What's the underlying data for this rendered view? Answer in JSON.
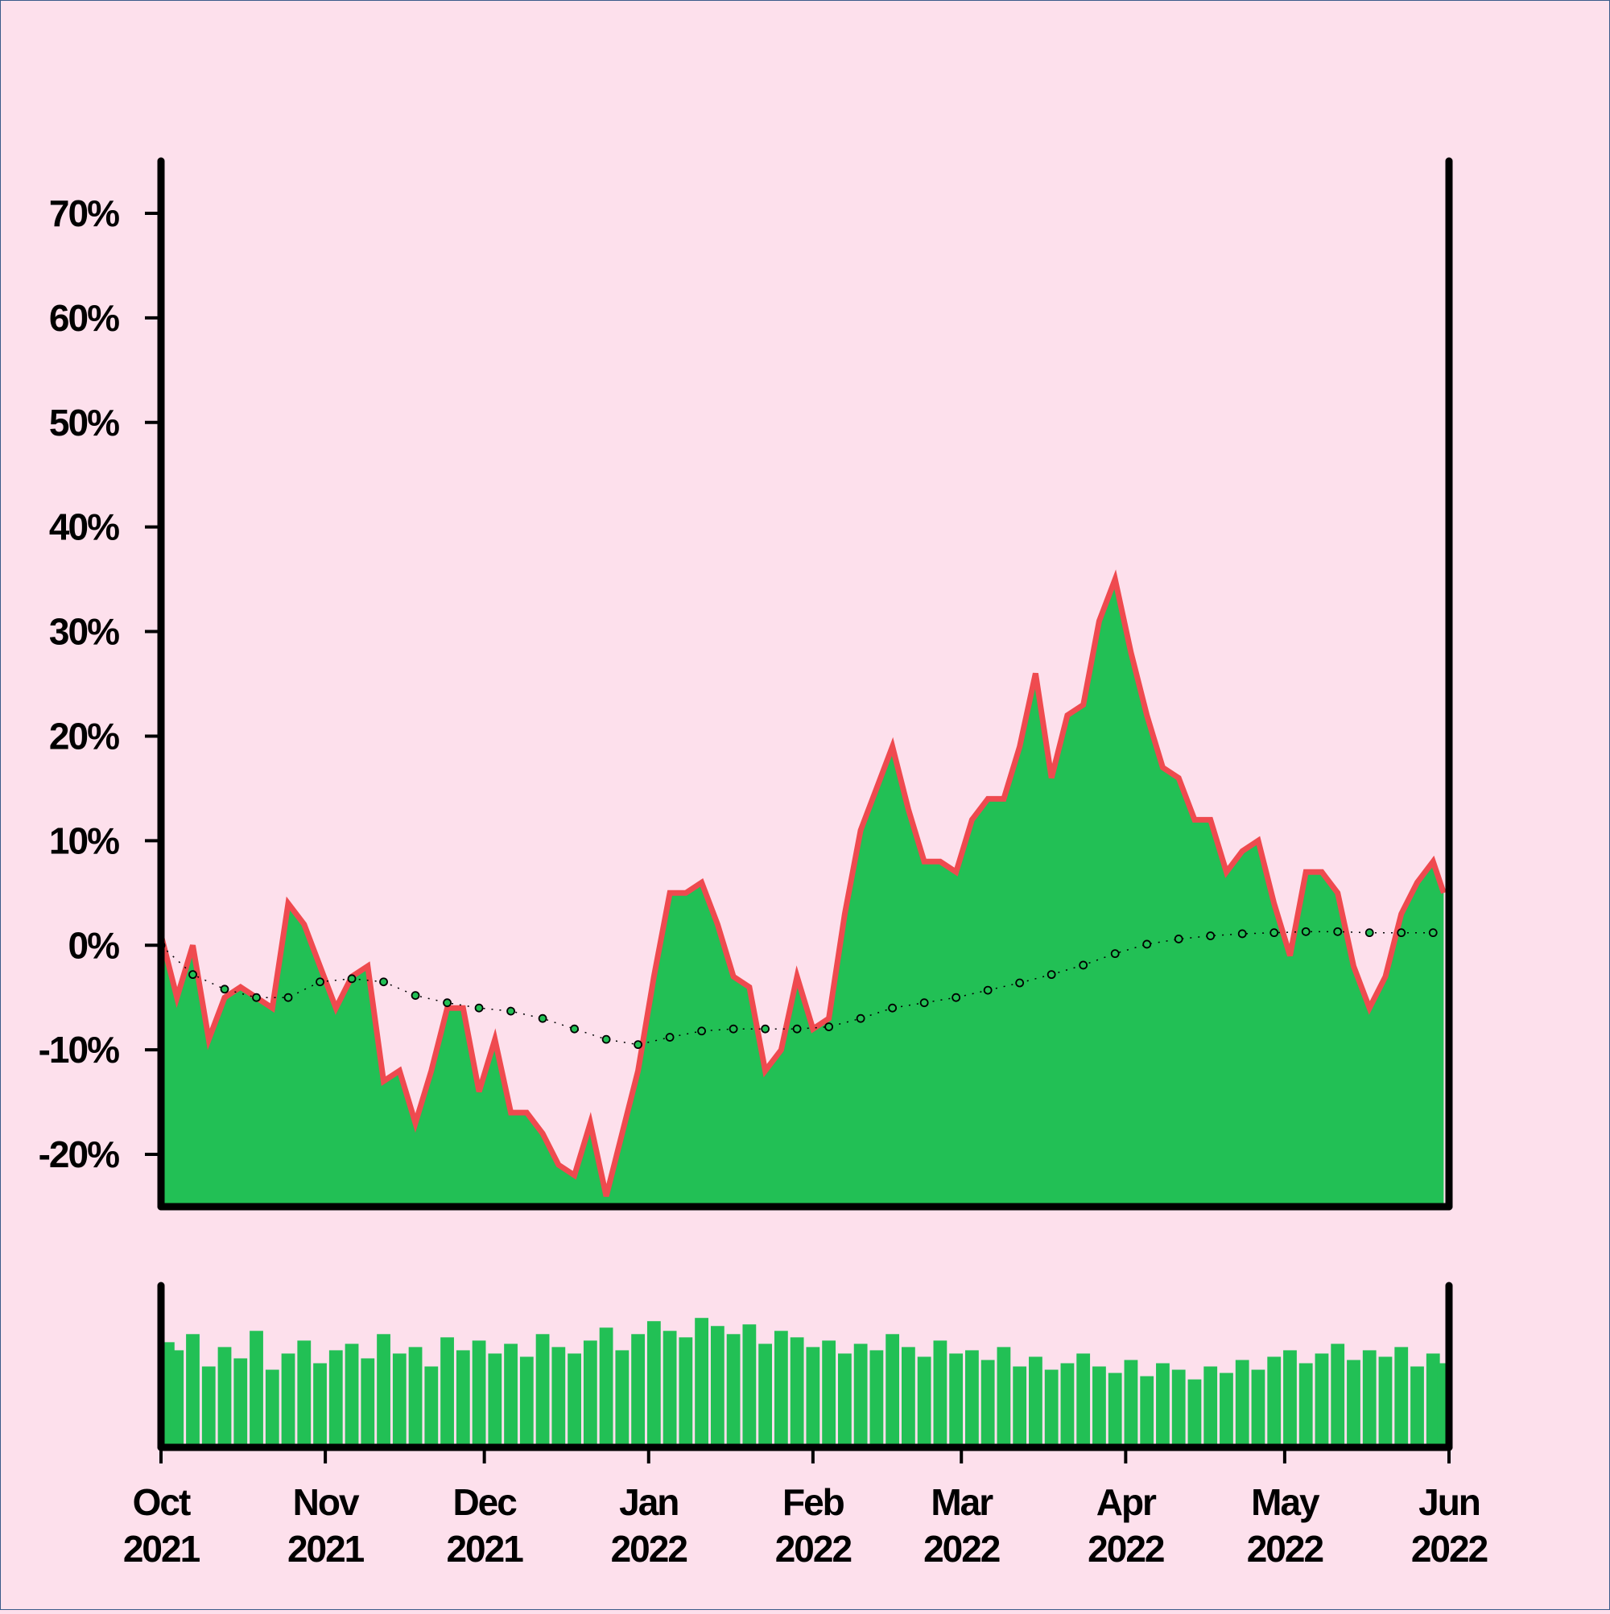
{
  "chart_data": {
    "type": "area",
    "x": [
      0,
      3,
      6,
      9,
      12,
      15,
      18,
      21,
      24,
      27,
      30,
      33,
      36,
      39,
      42,
      45,
      48,
      51,
      54,
      57,
      60,
      63,
      66,
      69,
      72,
      75,
      78,
      81,
      84,
      87,
      90,
      93,
      96,
      99,
      102,
      105,
      108,
      111,
      114,
      117,
      120,
      123,
      126,
      129,
      132,
      135,
      138,
      141,
      144,
      147,
      150,
      153,
      156,
      159,
      162,
      165,
      168,
      171,
      174,
      177,
      180,
      183,
      186,
      189,
      192,
      195,
      198,
      201,
      204,
      207,
      210,
      213,
      216,
      219,
      222,
      225,
      228,
      231,
      234,
      237,
      240,
      242
    ],
    "values": [
      1,
      -5,
      0,
      -9,
      -5,
      -4,
      -5,
      -6,
      4,
      2,
      -2,
      -6,
      -3,
      -2,
      -13,
      -12,
      -17,
      -12,
      -6,
      -6,
      -14,
      -9,
      -16,
      -16,
      -18,
      -21,
      -22,
      -17,
      -24,
      -18,
      -12,
      -3,
      5,
      5,
      6,
      2,
      -3,
      -4,
      -12,
      -10,
      -3,
      -8,
      -7,
      3,
      11,
      15,
      19,
      13,
      8,
      8,
      7,
      12,
      14,
      14,
      19,
      26,
      16,
      22,
      23,
      31,
      35,
      28,
      22,
      17,
      16,
      12,
      12,
      7,
      9,
      10,
      4,
      -1,
      7,
      7,
      5,
      -2,
      -6,
      -3,
      3,
      6,
      8,
      5
    ],
    "line_color": "#ef4a4f",
    "fill_color": "#22c055",
    "moving_average": {
      "x": [
        0,
        6,
        12,
        18,
        24,
        30,
        36,
        42,
        48,
        54,
        60,
        66,
        72,
        78,
        84,
        90,
        96,
        102,
        108,
        114,
        120,
        126,
        132,
        138,
        144,
        150,
        156,
        162,
        168,
        174,
        180,
        186,
        192,
        198,
        204,
        210,
        216,
        222,
        228,
        234,
        240
      ],
      "values": [
        0,
        -2.8,
        -4.2,
        -5,
        -5,
        -3.5,
        -3.2,
        -3.5,
        -4.8,
        -5.5,
        -6,
        -6.3,
        -7,
        -8,
        -9,
        -9.5,
        -8.8,
        -8.2,
        -8,
        -8,
        -8,
        -7.8,
        -7,
        -6,
        -5.5,
        -5,
        -4.3,
        -3.6,
        -2.8,
        -1.9,
        -0.8,
        0.1,
        0.6,
        0.9,
        1.1,
        1.2,
        1.3,
        1.3,
        1.2,
        1.2,
        1.2
      ],
      "color": "#22c055"
    },
    "volume": {
      "values": [
        65,
        60,
        70,
        50,
        62,
        55,
        72,
        48,
        58,
        66,
        52,
        60,
        64,
        55,
        70,
        58,
        62,
        50,
        68,
        60,
        66,
        58,
        64,
        56,
        70,
        62,
        58,
        66,
        74,
        60,
        70,
        78,
        72,
        68,
        80,
        75,
        70,
        76,
        64,
        72,
        68,
        62,
        66,
        58,
        64,
        60,
        70,
        62,
        56,
        66,
        58,
        60,
        54,
        62,
        50,
        56,
        48,
        52,
        58,
        50,
        46,
        54,
        44,
        52,
        48,
        42,
        50,
        46,
        54,
        48,
        56,
        60,
        52,
        58,
        64,
        54,
        60,
        56,
        62,
        50,
        58,
        52
      ],
      "color": "#22c055",
      "ylim": [
        0,
        100
      ]
    },
    "ylim": [
      -25,
      75
    ],
    "yticks": [
      {
        "value": -20,
        "label": "-20%"
      },
      {
        "value": -10,
        "label": "-10%"
      },
      {
        "value": 0,
        "label": "0%"
      },
      {
        "value": 10,
        "label": "10%"
      },
      {
        "value": 20,
        "label": "20%"
      },
      {
        "value": 30,
        "label": "30%"
      },
      {
        "value": 40,
        "label": "40%"
      },
      {
        "value": 50,
        "label": "50%"
      },
      {
        "value": 60,
        "label": "60%"
      },
      {
        "value": 70,
        "label": "70%"
      }
    ],
    "xlim": [
      0,
      243
    ],
    "xticks": [
      {
        "value": 0,
        "label": "Oct 2021"
      },
      {
        "value": 31,
        "label": "Nov 2021"
      },
      {
        "value": 61,
        "label": "Dec 2021"
      },
      {
        "value": 92,
        "label": "Jan 2022"
      },
      {
        "value": 123,
        "label": "Feb 2022"
      },
      {
        "value": 151,
        "label": "Mar 2022"
      },
      {
        "value": 182,
        "label": "Apr 2022"
      },
      {
        "value": 212,
        "label": "May 2022"
      },
      {
        "value": 243,
        "label": "Jun 2022"
      }
    ]
  }
}
